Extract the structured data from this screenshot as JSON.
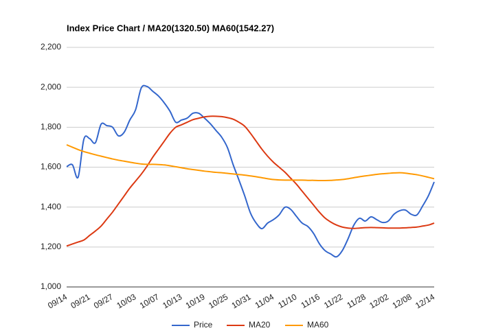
{
  "chart_data": {
    "type": "line",
    "title": "Index Price Chart / MA20(1320.50) MA60(1542.27)",
    "categories": [
      "09/14",
      null,
      null,
      null,
      "09/21",
      null,
      null,
      null,
      "09/27",
      null,
      null,
      null,
      "10/03",
      null,
      null,
      null,
      "10/07",
      null,
      null,
      null,
      "10/13",
      null,
      null,
      null,
      "10/19",
      null,
      null,
      null,
      "10/25",
      null,
      null,
      null,
      "10/31",
      null,
      null,
      null,
      "11/04",
      null,
      null,
      null,
      "11/10",
      null,
      null,
      null,
      "11/16",
      null,
      null,
      null,
      "11/22",
      null,
      null,
      null,
      "11/28",
      null,
      null,
      null,
      "12/02",
      null,
      null,
      null,
      "12/08",
      null,
      null,
      null,
      "12/14"
    ],
    "series": [
      {
        "name": "Price",
        "color": "#3366cc",
        "values": [
          1602,
          1612,
          1550,
          1740,
          1743,
          1722,
          1815,
          1808,
          1800,
          1757,
          1774,
          1836,
          1887,
          1997,
          2004,
          1980,
          1956,
          1922,
          1880,
          1825,
          1836,
          1846,
          1870,
          1870,
          1846,
          1818,
          1784,
          1750,
          1698,
          1612,
          1536,
          1457,
          1371,
          1320,
          1292,
          1320,
          1337,
          1361,
          1399,
          1389,
          1354,
          1320,
          1303,
          1268,
          1217,
          1182,
          1165,
          1151,
          1182,
          1241,
          1309,
          1344,
          1330,
          1351,
          1337,
          1323,
          1330,
          1364,
          1382,
          1385,
          1364,
          1361,
          1406,
          1457,
          1526
        ]
      },
      {
        "name": "MA20",
        "color": "#dc3912",
        "values": [
          1205,
          1215,
          1225,
          1235,
          1258,
          1280,
          1305,
          1340,
          1375,
          1415,
          1455,
          1495,
          1530,
          1565,
          1605,
          1650,
          1690,
          1730,
          1770,
          1800,
          1812,
          1825,
          1838,
          1845,
          1852,
          1855,
          1855,
          1853,
          1848,
          1840,
          1825,
          1805,
          1770,
          1730,
          1690,
          1655,
          1625,
          1600,
          1575,
          1545,
          1515,
          1480,
          1445,
          1410,
          1375,
          1345,
          1325,
          1310,
          1300,
          1295,
          1293,
          1295,
          1297,
          1298,
          1297,
          1296,
          1295,
          1295,
          1295,
          1296,
          1298,
          1300,
          1305,
          1310,
          1320
        ]
      },
      {
        "name": "MA60",
        "color": "#ff9900",
        "values": [
          1712,
          1700,
          1688,
          1678,
          1670,
          1662,
          1655,
          1648,
          1641,
          1635,
          1630,
          1625,
          1620,
          1616,
          1614,
          1614,
          1613,
          1611,
          1607,
          1602,
          1597,
          1592,
          1588,
          1584,
          1580,
          1577,
          1574,
          1572,
          1569,
          1566,
          1563,
          1560,
          1556,
          1552,
          1547,
          1542,
          1538,
          1536,
          1535,
          1535,
          1535,
          1535,
          1534,
          1534,
          1533,
          1533,
          1534,
          1536,
          1538,
          1542,
          1547,
          1552,
          1556,
          1560,
          1564,
          1567,
          1569,
          1571,
          1572,
          1570,
          1566,
          1562,
          1556,
          1549,
          1542
        ]
      }
    ],
    "ylim": [
      1000,
      2200
    ],
    "yticks": [
      {
        "value": 1000,
        "label": "1,000"
      },
      {
        "value": 1200,
        "label": "1,200"
      },
      {
        "value": 1400,
        "label": "1,400"
      },
      {
        "value": 1600,
        "label": "1,600"
      },
      {
        "value": 1800,
        "label": "1,800"
      },
      {
        "value": 2000,
        "label": "2,000"
      },
      {
        "value": 2200,
        "label": "2,200"
      }
    ],
    "grid": true,
    "legend": "bottom"
  }
}
